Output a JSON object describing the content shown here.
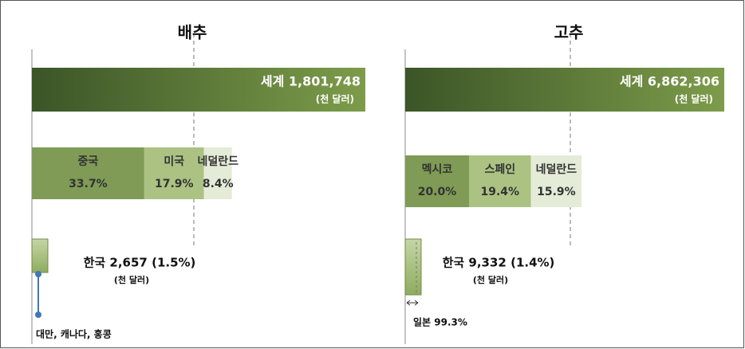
{
  "chart_data": [
    {
      "type": "bar",
      "title": "배추",
      "total_label": "세계 1,801,748",
      "unit": "(천 달러)",
      "categories": [
        "중국",
        "미국",
        "네덜란드"
      ],
      "values": [
        33.7,
        17.9,
        8.4
      ],
      "value_labels": [
        "33.7%",
        "17.9%",
        "8.4%"
      ],
      "colors": [
        "#7f9b55",
        "#abc283",
        "#e4ecd8"
      ],
      "korea_label": "한국 2,657 (1.5%)",
      "korea_unit": "(천 달러)",
      "note": "대만, 캐나다, 홍콩"
    },
    {
      "type": "bar",
      "title": "고추",
      "total_label": "세계 6,862,306",
      "unit": "(천 달러)",
      "categories": [
        "멕시코",
        "스페인",
        "네덜란드"
      ],
      "values": [
        20.0,
        19.4,
        15.9
      ],
      "value_labels": [
        "20.0%",
        "19.4%",
        "15.9%"
      ],
      "colors": [
        "#7f9b55",
        "#abc283",
        "#e4ecd8"
      ],
      "korea_label": "한국 9,332 (1.4%)",
      "korea_unit": "(천 달러)",
      "note": "일본 99.3%"
    }
  ]
}
